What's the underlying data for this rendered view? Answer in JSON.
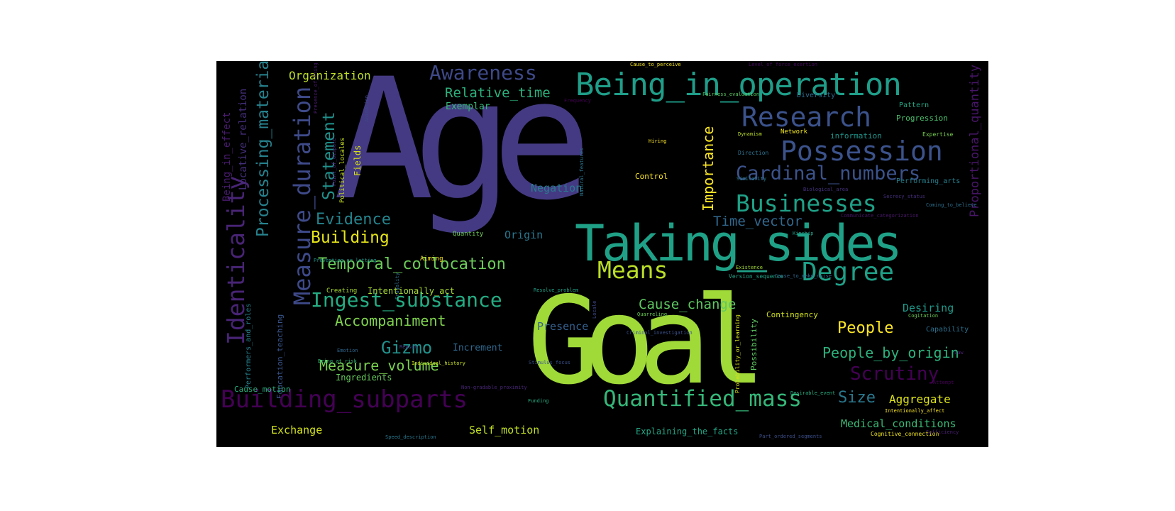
{
  "words": {
    "w0": {
      "text": "Age",
      "color": "#443a83"
    },
    "w1": {
      "text": "Goal",
      "color": "#a0da39"
    },
    "w2": {
      "text": "Taking_sides",
      "color": "#1fa187"
    },
    "w3": {
      "text": "Being_in_operation",
      "color": "#1f9e89"
    },
    "w4": {
      "text": "Research",
      "color": "#3b528b"
    },
    "w5": {
      "text": "Possession",
      "color": "#3b528b"
    },
    "w6": {
      "text": "Cardinal_numbers",
      "color": "#3b528b"
    },
    "w7": {
      "text": "Businesses",
      "color": "#1fa187"
    },
    "w8": {
      "text": "Awareness",
      "color": "#3e4989"
    },
    "w9": {
      "text": "Relative_time",
      "color": "#2db27d"
    },
    "w10": {
      "text": "Organization",
      "color": "#bddf26"
    },
    "w11": {
      "text": "Exemplar",
      "color": "#35b779"
    },
    "w12": {
      "text": "Processing_materials",
      "color": "#26828e"
    },
    "w13": {
      "text": "Measure_duration",
      "color": "#3e4a89"
    },
    "w14": {
      "text": "Statement",
      "color": "#21918c"
    },
    "w15": {
      "text": "Identicality",
      "color": "#482475"
    },
    "w16": {
      "text": "Building",
      "color": "#e5e419"
    },
    "w17": {
      "text": "Evidence",
      "color": "#25848e"
    },
    "w18": {
      "text": "Temporal_collocation",
      "color": "#6ccd5a"
    },
    "w19": {
      "text": "Means",
      "color": "#bade28"
    },
    "w20": {
      "text": "Degree",
      "color": "#1fa088"
    },
    "w21": {
      "text": "Ingest_substance",
      "color": "#25ab82"
    },
    "w22": {
      "text": "Accompaniment",
      "color": "#7fd34e"
    },
    "w23": {
      "text": "Gizmo",
      "color": "#21918c"
    },
    "w24": {
      "text": "Measure_volume",
      "color": "#7ad151"
    },
    "w25": {
      "text": "Building_subparts",
      "color": "#440154"
    },
    "w26": {
      "text": "Quantified_mass",
      "color": "#35b779"
    },
    "w27": {
      "text": "Cause_change",
      "color": "#5ec962"
    },
    "w28": {
      "text": "People",
      "color": "#fde725"
    },
    "w29": {
      "text": "People_by_origin",
      "color": "#2db27d"
    },
    "w30": {
      "text": "Scrutiny",
      "color": "#440154"
    },
    "w31": {
      "text": "Time_vector",
      "color": "#31688e"
    },
    "w32": {
      "text": "Importance",
      "color": "#fde725"
    },
    "w33": {
      "text": "Proportional_quantity",
      "color": "#481668"
    },
    "w34": {
      "text": "Origin",
      "color": "#2a768e"
    },
    "w35": {
      "text": "Negation",
      "color": "#297b8e"
    },
    "w36": {
      "text": "Presence",
      "color": "#34608d"
    },
    "w37": {
      "text": "Increment",
      "color": "#31688e"
    },
    "w38": {
      "text": "Size",
      "color": "#2a788e"
    },
    "w39": {
      "text": "Aggregate",
      "color": "#dde318"
    },
    "w40": {
      "text": "Desiring",
      "color": "#1f9a8a"
    },
    "w41": {
      "text": "Medical_conditions",
      "color": "#3aba76"
    },
    "w42": {
      "text": "Self_motion",
      "color": "#c2df23"
    },
    "w43": {
      "text": "Exchange",
      "color": "#d2e21b"
    },
    "w44": {
      "text": "Explaining_the_facts",
      "color": "#22a785"
    },
    "w45": {
      "text": "Being_in_effect",
      "color": "#481b6d"
    },
    "w46": {
      "text": "Locative_relation",
      "color": "#46307e"
    },
    "w47": {
      "text": "Creating",
      "color": "#aadc32"
    },
    "w48": {
      "text": "Intentionally_act",
      "color": "#a8db34"
    },
    "w49": {
      "text": "Ingredients",
      "color": "#67cc5c"
    },
    "w50": {
      "text": "Cause_motion",
      "color": "#2ab07f"
    },
    "w51": {
      "text": "Control",
      "color": "#fde725"
    },
    "w52": {
      "text": "Fields",
      "color": "#d8e219"
    },
    "w53": {
      "text": "Quantity",
      "color": "#6ece58"
    },
    "w54": {
      "text": "Aiming",
      "color": "#fde725"
    },
    "w55": {
      "text": "Contingency",
      "color": "#d0e11c"
    },
    "w56": {
      "text": "Possibility",
      "color": "#5ec962"
    },
    "w57": {
      "text": "Capability",
      "color": "#2c718e"
    },
    "w58": {
      "text": "Cognitive_connection",
      "color": "#f1e51d"
    },
    "w59": {
      "text": "Progression",
      "color": "#4ac16d"
    },
    "w60": {
      "text": "Pattern",
      "color": "#22a884"
    },
    "w61": {
      "text": "Diversity",
      "color": "#2e6e8e"
    },
    "w62": {
      "text": "information",
      "color": "#1f958b"
    },
    "w63": {
      "text": "Network",
      "color": "#f1e51d"
    },
    "w64": {
      "text": "Expertise",
      "color": "#7ad151"
    },
    "w65": {
      "text": "Performing_arts",
      "color": "#27808e"
    },
    "w66": {
      "text": "Biological_area",
      "color": "#46327e"
    },
    "w67": {
      "text": "Similarity",
      "color": "#287d8e"
    },
    "w68": {
      "text": "Direction",
      "color": "#2c728e"
    },
    "w69": {
      "text": "Dynamism",
      "color": "#bade28"
    },
    "w70": {
      "text": "Hiring",
      "color": "#fde725"
    },
    "w71": {
      "text": "Political_locales",
      "color": "#c8e020"
    },
    "w72": {
      "text": "Point_of_dispute",
      "color": "#482878"
    },
    "w73": {
      "text": "Animation",
      "color": "#3f4788"
    },
    "w74": {
      "text": "Frequency",
      "color": "#440154"
    },
    "w75": {
      "text": "Cause_to_perceive",
      "color": "#f6e620"
    },
    "w76": {
      "text": "Level_of_force_exertion",
      "color": "#460a5d"
    },
    "w77": {
      "text": "Communicate_categorization",
      "color": "#481769"
    },
    "w78": {
      "text": "Coming_to_believe",
      "color": "#2d708e"
    },
    "w79": {
      "text": "Kinship",
      "color": "#1f9e89"
    },
    "w80": {
      "text": "Existence",
      "color": "#a5db36"
    },
    "w81": {
      "text": "Version_sequence",
      "color": "#20a386"
    },
    "w82": {
      "text": "Cause_to_make_noise",
      "color": "#31688e"
    },
    "w83": {
      "text": "Cogitation",
      "color": "#6ccd5a"
    },
    "w84": {
      "text": "Attempt",
      "color": "#440154"
    },
    "w85": {
      "text": "Desirable_event",
      "color": "#27ad81"
    },
    "w86": {
      "text": "Funding",
      "color": "#25ac82"
    },
    "w87": {
      "text": "Intentionally_affect",
      "color": "#fde725"
    },
    "w88": {
      "text": "Part_ordered_segments",
      "color": "#3c4f8a"
    },
    "w89": {
      "text": "Speed_description",
      "color": "#2a788e"
    },
    "w90": {
      "text": "Non-gradable_proximity",
      "color": "#482677"
    },
    "w91": {
      "text": "Individual_history",
      "color": "#cae11f"
    },
    "w92": {
      "text": "Being_at_risk",
      "color": "#35b779"
    },
    "w93": {
      "text": "Resolve_problem",
      "color": "#1fa187"
    },
    "w94": {
      "text": "Quarreling",
      "color": "#6ece58"
    },
    "w95": {
      "text": "Criminal_investigation",
      "color": "#3b528b"
    },
    "w96": {
      "text": "Probability_or_learning",
      "color": "#d5e21a"
    },
    "w97": {
      "text": "Reason",
      "color": "#433e85"
    },
    "w98": {
      "text": "Preventing_or_letting",
      "color": "#1f988b"
    },
    "w99": {
      "text": "Education_teaching",
      "color": "#39558c"
    },
    "w100": {
      "text": "Performers_and_roles",
      "color": "#26828e"
    },
    "w101": {
      "text": "Frugality",
      "color": "#2e6d8e"
    },
    "w102": {
      "text": "Emotion",
      "color": "#30678d"
    },
    "w103": {
      "text": "Stimulus_focus",
      "color": "#3b518b"
    },
    "w104": {
      "text": "Sufficiency",
      "color": "#482172"
    },
    "w105": {
      "text": "Presence_of_thing",
      "color": "#481b6d"
    },
    "w106": {
      "text": "Fairness_evaluation",
      "color": "#5cc863"
    },
    "w107": {
      "text": "Natural_features",
      "color": "#2a768e"
    },
    "w108": {
      "text": "Secrecy_status",
      "color": "#46307e"
    },
    "w109": {
      "text": "Locale",
      "color": "#3e4989"
    },
    "w110": {
      "text": "Law",
      "color": "#481f70"
    }
  }
}
